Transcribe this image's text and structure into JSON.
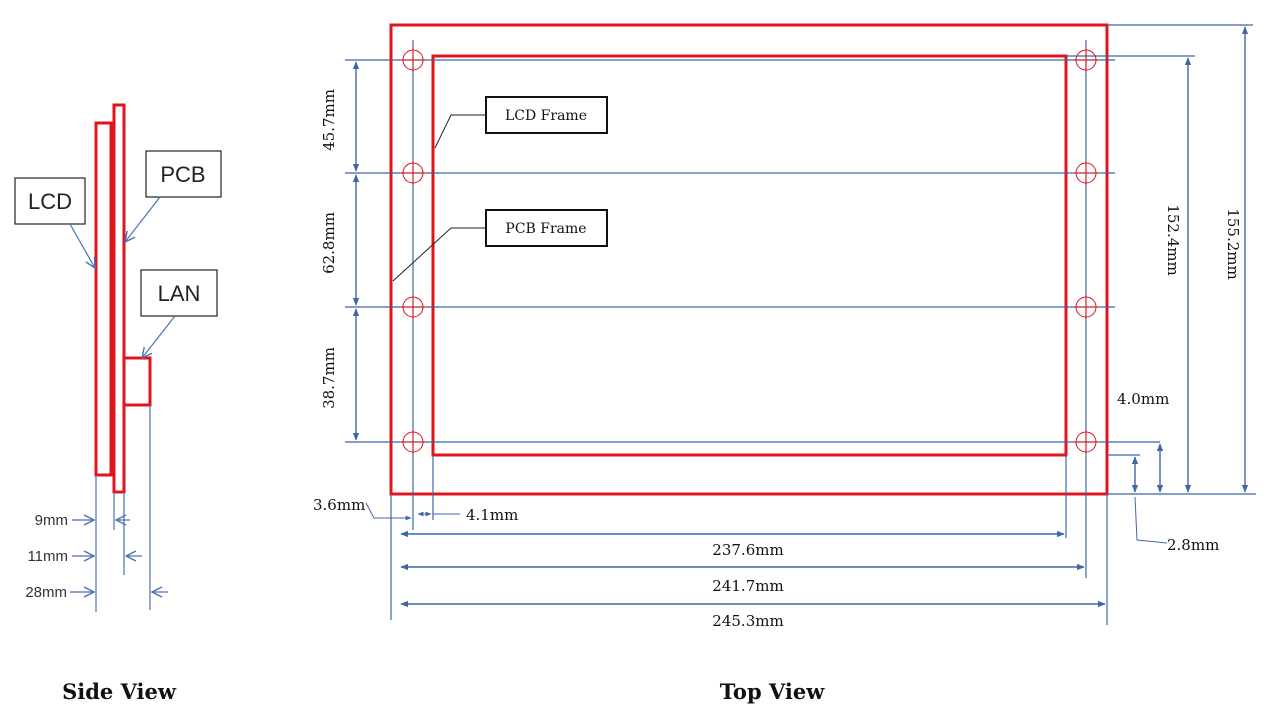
{
  "side_view": {
    "title": "Side View",
    "callouts": {
      "lcd": "LCD",
      "pcb": "PCB",
      "lan": "LAN"
    },
    "dims": {
      "d9": "9mm",
      "d11": "11mm",
      "d28": "28mm"
    }
  },
  "top_view": {
    "title": "Top View",
    "labels": {
      "lcd_frame": "LCD Frame",
      "pcb_frame": "PCB Frame"
    },
    "dims": {
      "v_45_7": "45.7mm",
      "v_62_8": "62.8mm",
      "v_38_7": "38.7mm",
      "v_152_4": "152.4mm",
      "v_155_2": "155.2mm",
      "v_4_0": "4.0mm",
      "v_2_8": "2.8mm",
      "h_3_6": "3.6mm",
      "h_4_1": "4.1mm",
      "h_237_6": "237.6mm",
      "h_241_7": "241.7mm",
      "h_245_3": "245.3mm"
    }
  },
  "colors": {
    "frame": "#e0141b",
    "dim": "#3f66a8",
    "text": "#111111"
  }
}
